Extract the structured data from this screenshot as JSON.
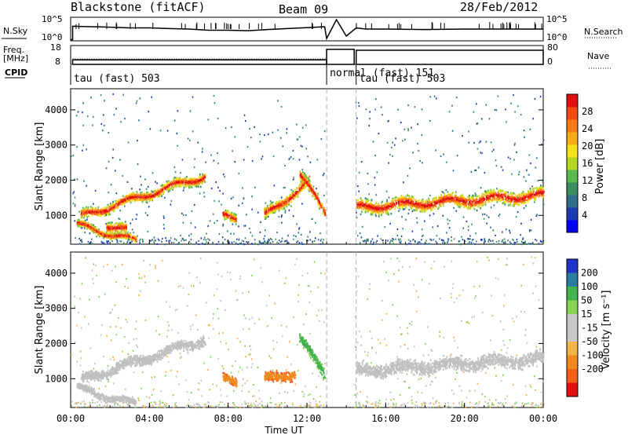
{
  "header": {
    "station": "Blackstone (fitACF)",
    "beam": "Beam 09",
    "date": "28/Feb/2012"
  },
  "chart_data": [
    {
      "type": "line",
      "name": "nsky-nsearch-panel",
      "left_label": "N.Sky",
      "right_label": "N.Search",
      "left_ticks": [
        "10^5",
        "10^0"
      ],
      "right_ticks": [
        "10^5",
        "10^0"
      ],
      "series": [
        {
          "name": "N.Sky",
          "style": "solid",
          "x_hours": [
            0.0,
            0.1,
            0.1,
            1.0,
            2.0,
            3.0,
            4.0,
            5.0,
            6.0,
            7.0,
            8.0,
            9.0,
            10.0,
            11.0,
            12.0,
            12.9,
            13.0,
            13.5,
            14.0,
            14.5,
            15.0,
            16.0,
            18.0,
            20.0,
            22.0,
            24.0
          ],
          "y_frac": [
            0.05,
            0.05,
            0.62,
            0.6,
            0.58,
            0.55,
            0.55,
            0.52,
            0.5,
            0.45,
            0.45,
            0.43,
            0.48,
            0.52,
            0.56,
            0.6,
            0.1,
            0.9,
            0.2,
            0.55,
            0.5,
            0.5,
            0.48,
            0.5,
            0.5,
            0.5
          ]
        }
      ]
    },
    {
      "type": "line",
      "name": "frequency-nave-panel",
      "left_label": "Freq. [MHz]",
      "right_label": "Nave",
      "left_ticks": [
        18,
        8
      ],
      "right_ticks": [
        80,
        0
      ],
      "segments": [
        {
          "start_hour": 0.1,
          "end_hour": 13.0,
          "freq_mhz": 10.4
        },
        {
          "start_hour": 13.0,
          "end_hour": 14.4,
          "freq_mhz": 16.0
        },
        {
          "start_hour": 14.5,
          "end_hour": 24.0,
          "freq_mhz": 15.5
        }
      ]
    },
    {
      "type": "table",
      "name": "cpid-track",
      "label": "CPID",
      "entries": [
        {
          "start_hour": 0.0,
          "text": "tau (fast) 503"
        },
        {
          "start_hour": 13.0,
          "text": "normal (fast) 151"
        },
        {
          "start_hour": 14.5,
          "text": "tau (fast) 503"
        }
      ]
    },
    {
      "type": "heatmap",
      "name": "power-panel",
      "ylabel": "Slant Range [km]",
      "y_ticks": [
        1000,
        2000,
        3000,
        4000
      ],
      "ylim": [
        180,
        4600
      ],
      "xlim_hours": [
        0,
        24
      ],
      "colorbar": {
        "label": "Power [dB]",
        "ticks": [
          4,
          8,
          12,
          16,
          20,
          24,
          28
        ],
        "range": [
          0,
          32
        ]
      },
      "echo_bands": [
        {
          "start_hour": 0.5,
          "end_hour": 6.8,
          "range_start_km": 1000,
          "range_end_km": 2150,
          "width_km": 380,
          "peak_db": 30
        },
        {
          "start_hour": 0.3,
          "end_hour": 3.3,
          "range_start_km": 750,
          "range_end_km": 300,
          "width_km": 260,
          "peak_db": 30
        },
        {
          "start_hour": 1.8,
          "end_hour": 2.8,
          "range_start_km": 750,
          "range_end_km": 600,
          "width_km": 420,
          "peak_db": 28
        },
        {
          "start_hour": 7.7,
          "end_hour": 8.4,
          "range_start_km": 1000,
          "range_end_km": 950,
          "width_km": 380,
          "peak_db": 24
        },
        {
          "start_hour": 9.8,
          "end_hour": 12.1,
          "range_start_km": 1000,
          "range_end_km": 2000,
          "width_km": 420,
          "peak_db": 26
        },
        {
          "start_hour": 11.6,
          "end_hour": 12.9,
          "range_start_km": 2200,
          "range_end_km": 1100,
          "width_km": 450,
          "peak_db": 26
        },
        {
          "start_hour": 14.5,
          "end_hour": 24.0,
          "range_start_km": 1250,
          "range_end_km": 1600,
          "width_km": 520,
          "peak_db": 28
        }
      ]
    },
    {
      "type": "heatmap",
      "name": "velocity-panel",
      "ylabel": "Slant Range [km]",
      "y_ticks": [
        1000,
        2000,
        3000,
        4000
      ],
      "ylim": [
        180,
        4600
      ],
      "xlim_hours": [
        0,
        24
      ],
      "colorbar": {
        "label": "Velocity [m s⁻¹]",
        "ticks": [
          200,
          100,
          50,
          15,
          -15,
          -50,
          -100,
          -200
        ],
        "range": [
          -250,
          250
        ]
      },
      "echo_bands": [
        {
          "start_hour": 0.5,
          "end_hour": 6.8,
          "range_start_km": 1000,
          "range_end_km": 2150,
          "width_km": 380,
          "velocity_ms": 0
        },
        {
          "start_hour": 0.3,
          "end_hour": 3.3,
          "range_start_km": 750,
          "range_end_km": 300,
          "width_km": 260,
          "velocity_ms": 0
        },
        {
          "start_hour": 7.7,
          "end_hour": 8.4,
          "range_start_km": 1000,
          "range_end_km": 950,
          "width_km": 380,
          "velocity_ms": -80
        },
        {
          "start_hour": 9.8,
          "end_hour": 11.4,
          "range_start_km": 1000,
          "range_end_km": 1200,
          "width_km": 380,
          "velocity_ms": -70
        },
        {
          "start_hour": 11.6,
          "end_hour": 12.9,
          "range_start_km": 2200,
          "range_end_km": 1100,
          "width_km": 450,
          "velocity_ms": 40
        },
        {
          "start_hour": 14.5,
          "end_hour": 24.0,
          "range_start_km": 1250,
          "range_end_km": 1600,
          "width_km": 520,
          "velocity_ms": 0
        }
      ]
    }
  ],
  "x_axis": {
    "label": "Time UT",
    "ticks": [
      "00:00",
      "04:00",
      "08:00",
      "12:00",
      "16:00",
      "20:00",
      "00:00"
    ],
    "tick_hours": [
      0,
      4,
      8,
      12,
      16,
      20,
      24
    ]
  },
  "colors": {
    "power_scale": [
      "#0000ff",
      "#1c3bb0",
      "#2e6e8a",
      "#3c8e60",
      "#59b84e",
      "#b4d624",
      "#f6e11c",
      "#f8ac1a",
      "#f77a18",
      "#f24a14",
      "#e01010"
    ],
    "velocity_scale": [
      "#1f34c6",
      "#2a7d9e",
      "#42b24c",
      "#88d255",
      "#c8c8c8",
      "#c8c8c8",
      "#f2b34a",
      "#f08a20",
      "#f2601a",
      "#e01010"
    ],
    "ground_scatter": "#c0c0c0"
  }
}
